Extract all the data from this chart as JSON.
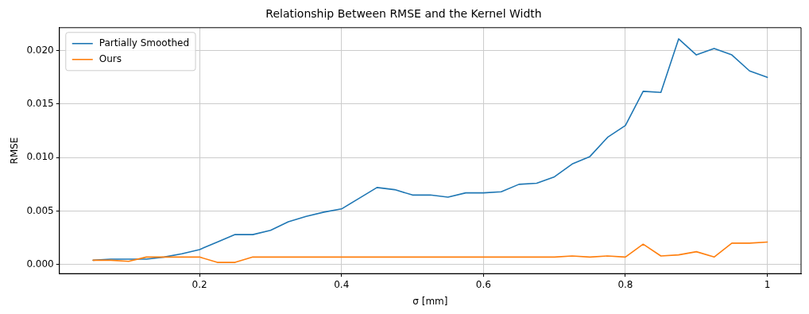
{
  "chart_data": {
    "type": "line",
    "title": "Relationship Between RMSE and the Kernel Width",
    "xlabel": "σ [mm]",
    "ylabel": "RMSE",
    "x": [
      0.05,
      0.075,
      0.1,
      0.125,
      0.15,
      0.175,
      0.2,
      0.225,
      0.25,
      0.275,
      0.3,
      0.325,
      0.35,
      0.375,
      0.4,
      0.425,
      0.45,
      0.475,
      0.5,
      0.525,
      0.55,
      0.575,
      0.6,
      0.625,
      0.65,
      0.675,
      0.7,
      0.725,
      0.75,
      0.775,
      0.8,
      0.825,
      0.85,
      0.875,
      0.9,
      0.925,
      0.95,
      0.975,
      1.0
    ],
    "series": [
      {
        "name": "Partially Smoothed",
        "color": "#1f77b4",
        "values": [
          0.0004,
          0.0005,
          0.0005,
          0.0005,
          0.0007,
          0.001,
          0.0014,
          0.0021,
          0.0028,
          0.0028,
          0.0032,
          0.004,
          0.0045,
          0.0049,
          0.0052,
          0.0062,
          0.0072,
          0.007,
          0.0065,
          0.0065,
          0.0063,
          0.0067,
          0.0067,
          0.0068,
          0.0075,
          0.0076,
          0.0082,
          0.0094,
          0.0101,
          0.0119,
          0.013,
          0.0162,
          0.0161,
          0.0211,
          0.0196,
          0.0202,
          0.0196,
          0.0181,
          0.0175
        ]
      },
      {
        "name": "Ours",
        "color": "#ff7f0e",
        "values": [
          0.0004,
          0.0004,
          0.0003,
          0.0007,
          0.0007,
          0.0007,
          0.0007,
          0.0002,
          0.0002,
          0.0007,
          0.0007,
          0.0007,
          0.0007,
          0.0007,
          0.0007,
          0.0007,
          0.0007,
          0.0007,
          0.0007,
          0.0007,
          0.0007,
          0.0007,
          0.0007,
          0.0007,
          0.0007,
          0.0007,
          0.0007,
          0.0008,
          0.0007,
          0.0008,
          0.0007,
          0.0019,
          0.0008,
          0.0009,
          0.0012,
          0.0007,
          0.002,
          0.002,
          0.0021
        ]
      }
    ],
    "xlim": [
      0.0025,
      1.0475
    ],
    "xticks": [
      0.2,
      0.4,
      0.6,
      0.8,
      1.0
    ],
    "ylim": [
      -0.00085,
      0.02215
    ],
    "yticks": [
      {
        "value": 0,
        "label": "0.000"
      },
      {
        "value": 0.005,
        "label": "0.005"
      },
      {
        "value": 0.01,
        "label": "0.010"
      },
      {
        "value": 0.015,
        "label": "0.015"
      },
      {
        "value": 0.02,
        "label": "0.020"
      }
    ],
    "grid": true,
    "legend": "top left",
    "marker": "none",
    "line_style": "solid"
  }
}
